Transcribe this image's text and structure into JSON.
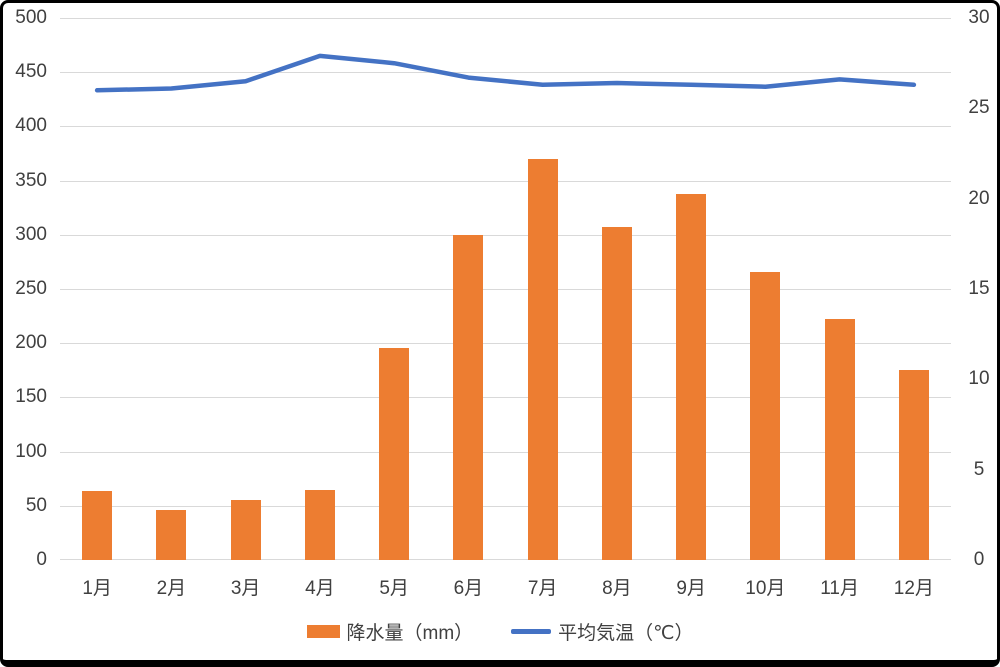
{
  "chart_data": {
    "type": "combo",
    "categories": [
      "1月",
      "2月",
      "3月",
      "4月",
      "5月",
      "6月",
      "7月",
      "8月",
      "9月",
      "10月",
      "11月",
      "12月"
    ],
    "series": [
      {
        "name": "降水量（mm）",
        "type": "bar",
        "axis": "left",
        "color": "#ED7D31",
        "values": [
          64,
          46,
          55,
          65,
          196,
          300,
          370,
          307,
          338,
          266,
          222,
          175
        ]
      },
      {
        "name": "平均気温（℃）",
        "type": "line",
        "axis": "right",
        "color": "#4472C4",
        "values": [
          26.0,
          26.1,
          26.5,
          27.9,
          27.5,
          26.7,
          26.3,
          26.4,
          26.3,
          26.2,
          26.6,
          26.3
        ]
      }
    ],
    "axes": {
      "left": {
        "min": 0,
        "max": 500,
        "step": 50,
        "ticks": [
          0,
          50,
          100,
          150,
          200,
          250,
          300,
          350,
          400,
          450,
          500
        ]
      },
      "right": {
        "min": 0,
        "max": 30,
        "step": 5,
        "ticks": [
          0,
          5,
          10,
          15,
          20,
          25,
          30
        ]
      }
    },
    "grid": true,
    "legend_position": "bottom",
    "gridline_color": "#D9D9D9",
    "text_color": "#404040",
    "frame_color": "#000000",
    "background_color": "#FFFFFF"
  }
}
